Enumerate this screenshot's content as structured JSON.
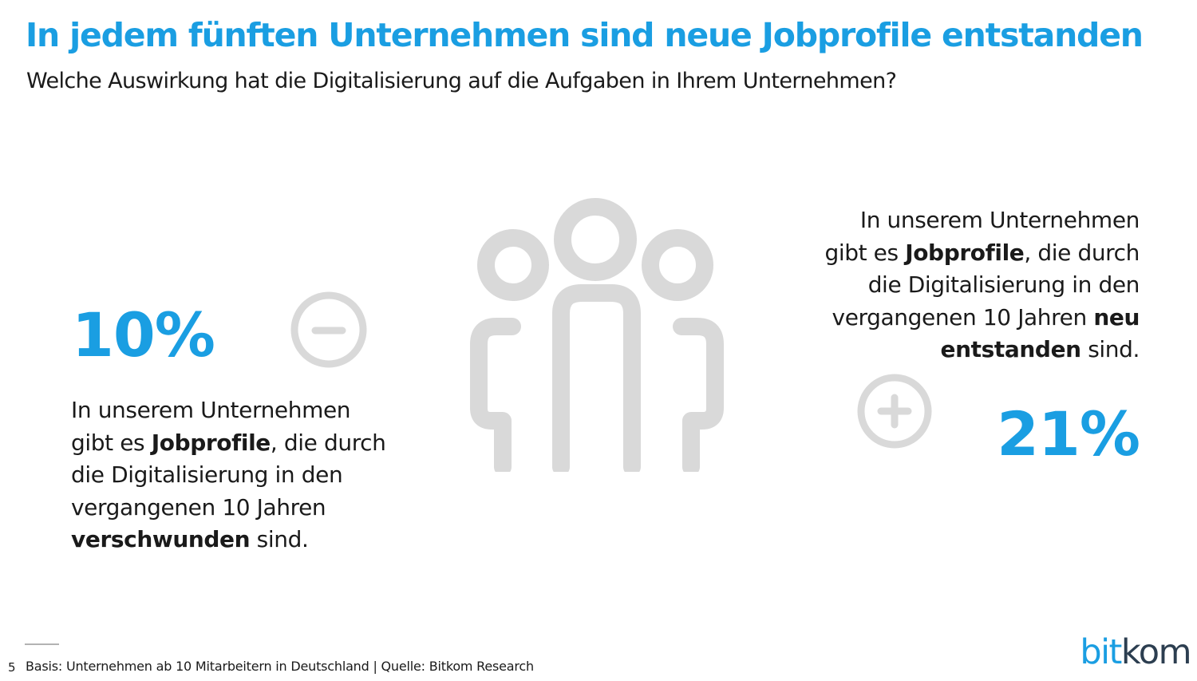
{
  "header": {
    "title": "In jedem fünften Unternehmen sind neue Jobprofile entstanden",
    "subtitle": "Welche Auswirkung hat die Digitalisierung auf die Aufgaben in Ihrem Unternehmen?"
  },
  "stat_left": {
    "value": "10%",
    "icon": "minus-circle-icon",
    "line1": "In unserem Unternehmen",
    "line2_pre": "gibt es ",
    "line2_bold": "Jobprofile",
    "line2_post": ", die durch",
    "line3": "die Digitalisierung in den",
    "line4": "vergangenen 10 Jahren",
    "line5_bold": "verschwunden",
    "line5_post": " sind."
  },
  "stat_right": {
    "value": "21%",
    "icon": "plus-circle-icon",
    "line1": "In unserem Unternehmen",
    "line2_pre": "gibt es ",
    "line2_bold": "Jobprofile",
    "line2_post": ", die durch",
    "line3": "die Digitalisierung in den",
    "line4_pre": "vergangenen 10 Jahren ",
    "line4_bold": "neu",
    "line5_bold": "entstanden",
    "line5_post": " sind."
  },
  "illustration": {
    "icon": "people-group-icon"
  },
  "footer": {
    "page_number": "5",
    "note": "Basis: Unternehmen ab 10 Mitarbeitern in Deutschland | Quelle: Bitkom Research"
  },
  "logo": {
    "part1": "bit",
    "part2": "kom"
  },
  "colors": {
    "accent": "#1a9ee2",
    "text": "#1a1a1a",
    "icon_gray": "#d9d9d9"
  }
}
